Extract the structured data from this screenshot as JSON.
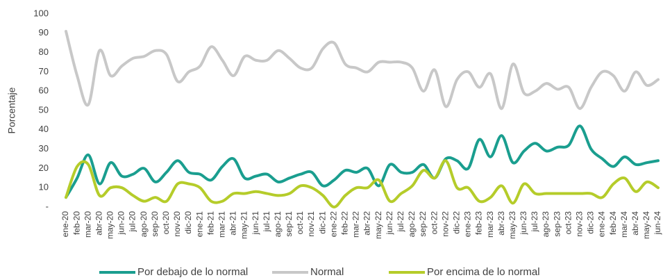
{
  "chart_data": {
    "type": "line",
    "y_label": "Porcentaje",
    "categories": [
      "ene-20",
      "feb-20",
      "mar-20",
      "abr-20",
      "may-20",
      "jun-20",
      "jul-20",
      "ago-20",
      "sep-20",
      "oct-20",
      "nov-20",
      "dic-20",
      "ene-21",
      "feb-21",
      "mar-21",
      "abr-21",
      "may-21",
      "jun-21",
      "jul-21",
      "ago-21",
      "sep-21",
      "oct-21",
      "nov-21",
      "dic-21",
      "ene-22",
      "feb-22",
      "mar-22",
      "abr-22",
      "may-22",
      "jun-22",
      "jul-22",
      "ago-22",
      "sep-22",
      "oct-22",
      "nov-22",
      "dic-22",
      "ene-23",
      "feb-23",
      "mar-23",
      "abr-23",
      "may-23",
      "jun-23",
      "jul-23",
      "ago-23",
      "sep-23",
      "oct-23",
      "nov-23",
      "dic-23",
      "ene-24",
      "feb-24",
      "mar-24",
      "abr-24",
      "may-24",
      "jun-24"
    ],
    "series": [
      {
        "name": "Por debajo de lo normal",
        "color": "#1a9e8f",
        "values": [
          5,
          15,
          27,
          12,
          23,
          16,
          17,
          20,
          13,
          18,
          24,
          18,
          17,
          14,
          21,
          25,
          15,
          16,
          17,
          13,
          15,
          17,
          18,
          11,
          14,
          19,
          18,
          20,
          11,
          22,
          18,
          18,
          22,
          15,
          25,
          24,
          20,
          35,
          26,
          37,
          23,
          29,
          33,
          29,
          31,
          32,
          42,
          30,
          25,
          21,
          26,
          22,
          23,
          24
        ]
      },
      {
        "name": "Normal",
        "color": "#c8c8c8",
        "values": [
          91,
          68,
          53,
          81,
          68,
          73,
          77,
          78,
          81,
          79,
          65,
          70,
          73,
          83,
          76,
          68,
          78,
          76,
          76,
          81,
          77,
          72,
          72,
          82,
          85,
          74,
          72,
          70,
          75,
          75,
          75,
          72,
          60,
          71,
          52,
          66,
          70,
          62,
          69,
          51,
          74,
          59,
          60,
          64,
          61,
          62,
          51,
          62,
          70,
          68,
          60,
          70,
          63,
          66
        ]
      },
      {
        "name": "Por encima de lo normal",
        "color": "#b5cc2a",
        "values": [
          5,
          21,
          22,
          6,
          10,
          10,
          6,
          3,
          5,
          3,
          12,
          12,
          10,
          3,
          3,
          7,
          7,
          8,
          7,
          6,
          7,
          11,
          10,
          6,
          0,
          6,
          10,
          10,
          14,
          3,
          7,
          11,
          19,
          15,
          24,
          10,
          10,
          3,
          5,
          11,
          2,
          12,
          7,
          7,
          7,
          7,
          7,
          7,
          5,
          12,
          15,
          8,
          13,
          10
        ]
      }
    ],
    "ylim": [
      0,
      100
    ],
    "yticks": [
      {
        "value": 0,
        "label": "-"
      },
      10,
      20,
      30,
      40,
      50,
      60,
      70,
      80,
      90,
      100
    ],
    "grid": false,
    "legend": "bottom"
  }
}
